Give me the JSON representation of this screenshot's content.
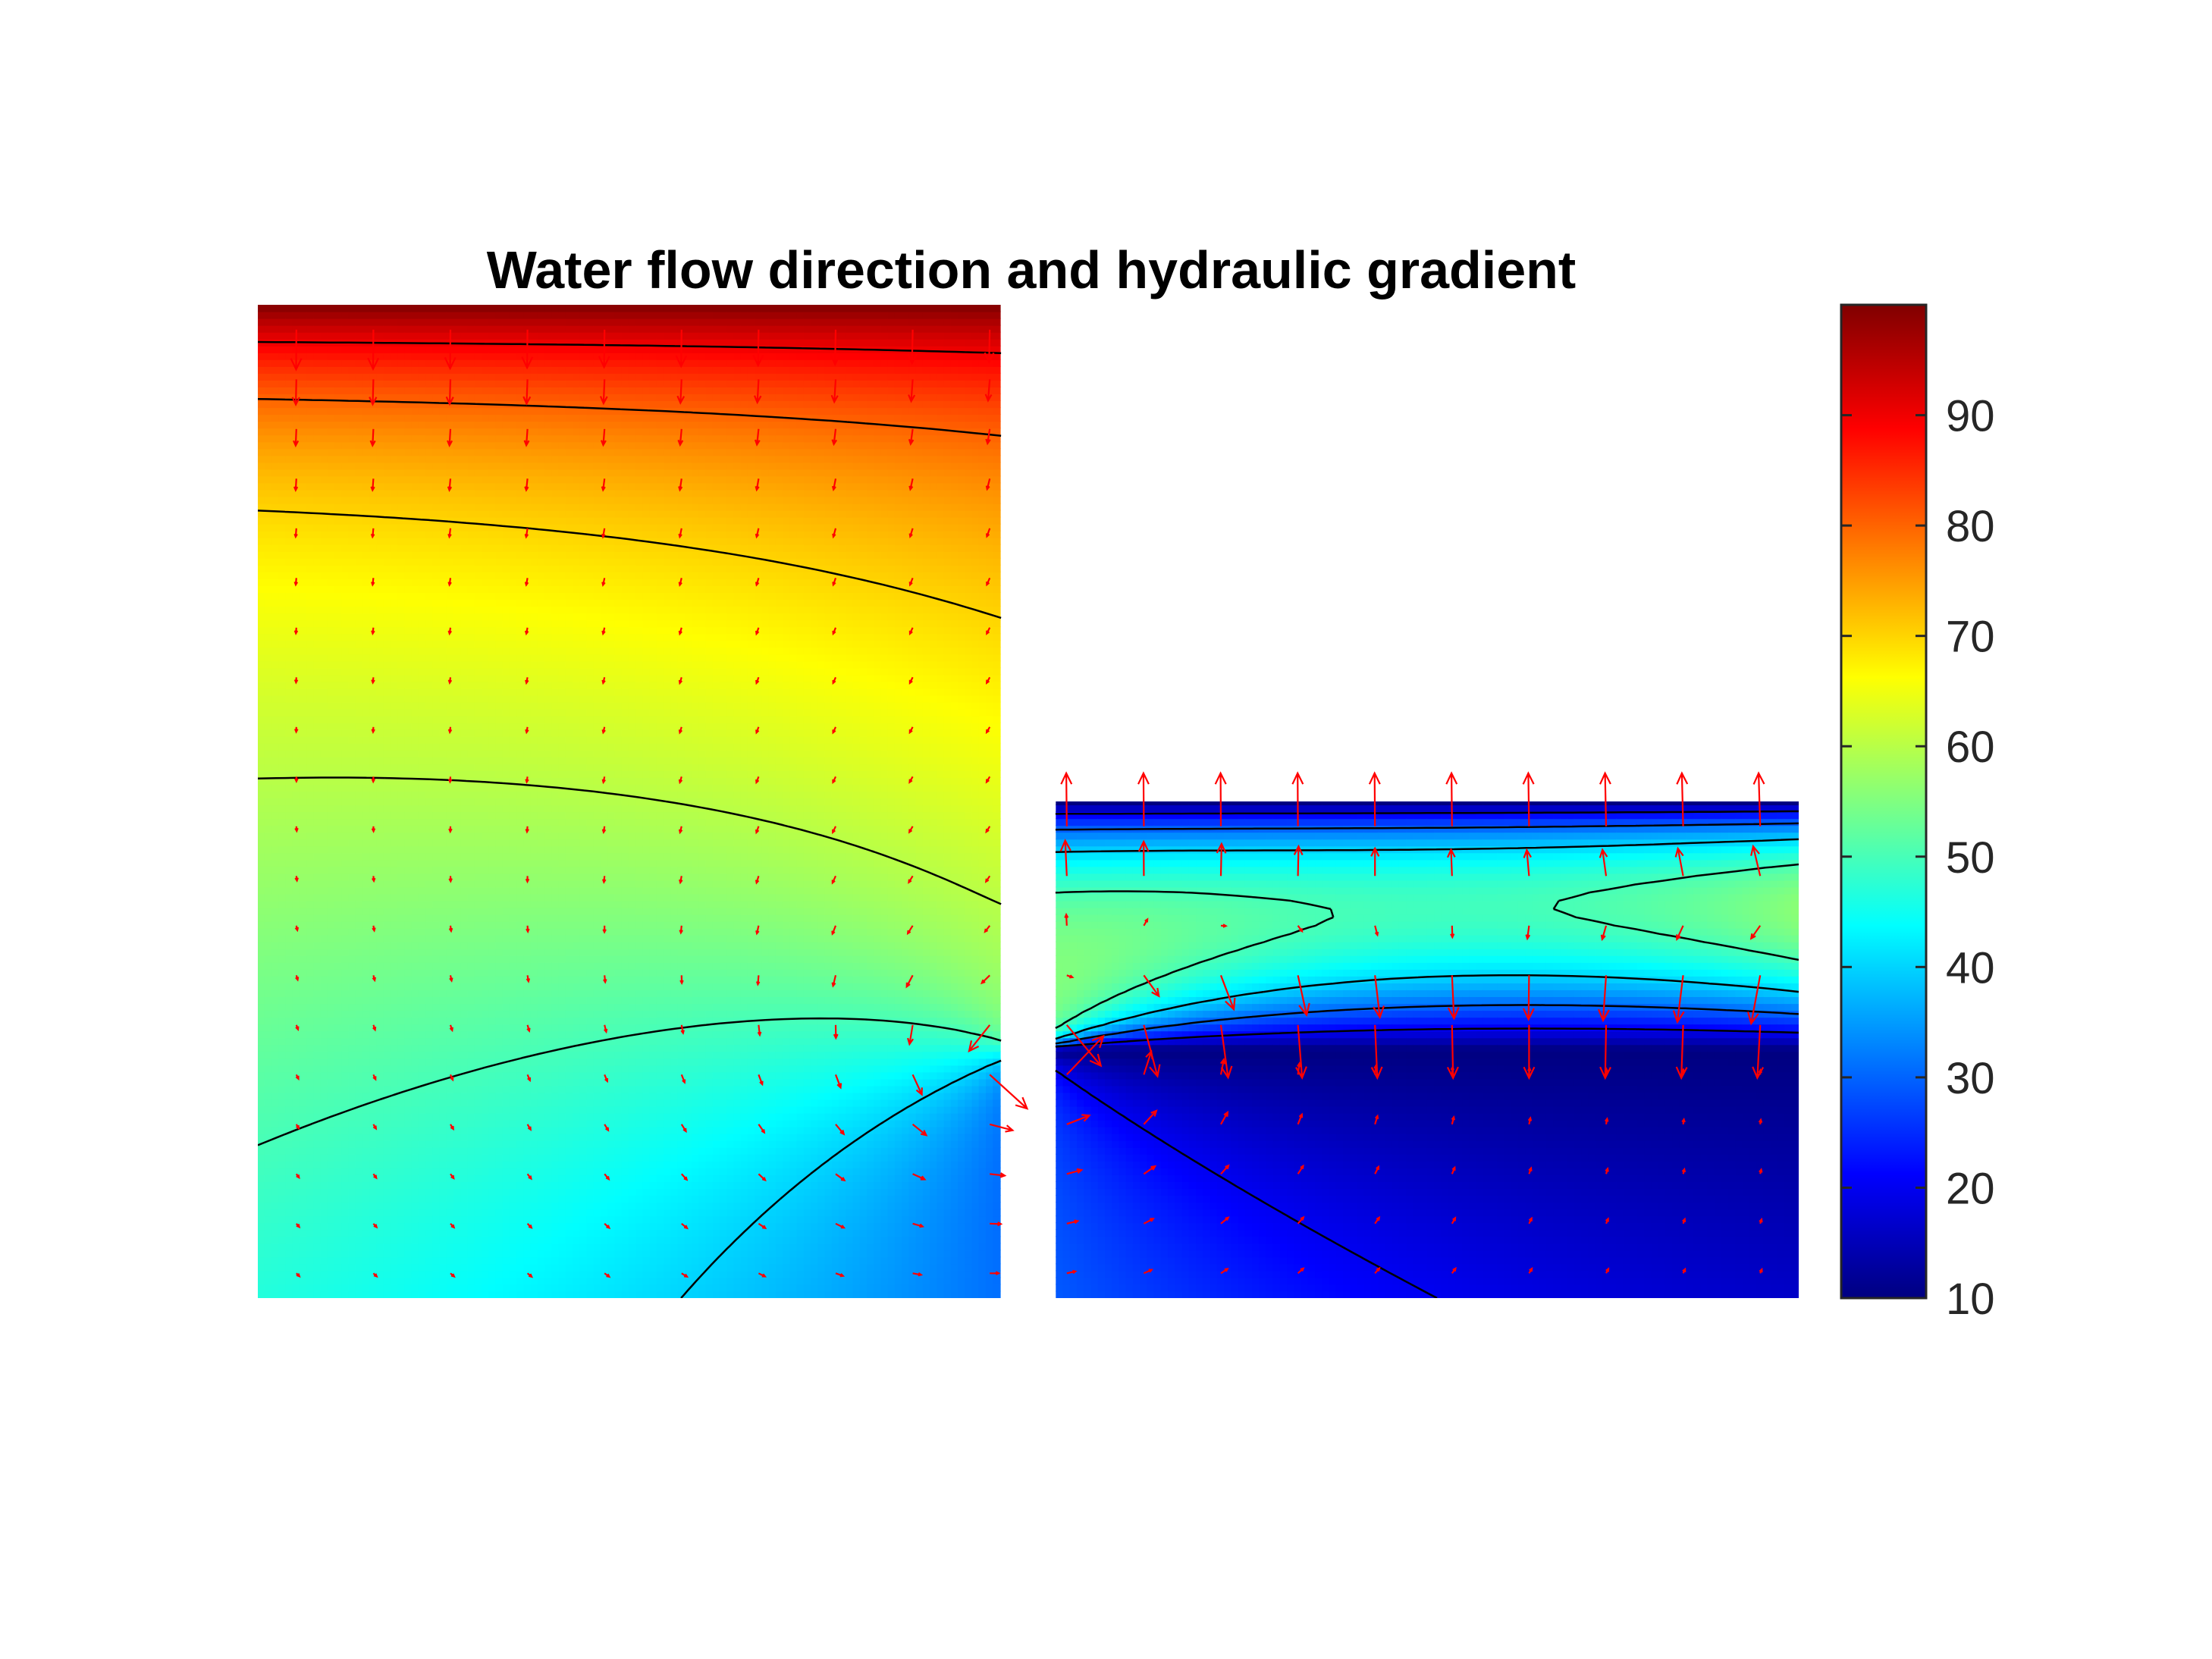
{
  "chart_data": {
    "type": "heatmap",
    "title": "Water flow direction and hydraulic gradient",
    "xlabel": "",
    "ylabel": "",
    "axes_visible": false,
    "colormap": "jet",
    "colorbar": {
      "location": "right",
      "range": [
        10,
        100
      ],
      "ticks": [
        10,
        20,
        30,
        40,
        50,
        60,
        70,
        80,
        90
      ],
      "tick_labels": [
        "10",
        "20",
        "30",
        "40",
        "50",
        "60",
        "70",
        "80",
        "90"
      ]
    },
    "domain": {
      "x_range": [
        0,
        100
      ],
      "y_range": [
        0,
        100
      ],
      "upstream_block": {
        "x": [
          0,
          48.3
        ],
        "y": [
          0,
          100
        ]
      },
      "sheet_pile": {
        "x": [
          48.3,
          51.6
        ],
        "y": [
          25,
          100
        ]
      },
      "downstream_block": {
        "x": [
          51.6,
          100
        ],
        "y": [
          0,
          50
        ]
      }
    },
    "head_field": {
      "upstream_surface": 100,
      "downstream_surface": 10
    },
    "contour_levels": [
      20,
      30,
      40,
      50,
      60,
      70,
      80,
      90
    ],
    "contour_color": "#000000",
    "quiver": {
      "color": "#ff0000",
      "description": "flow velocity vectors"
    }
  }
}
